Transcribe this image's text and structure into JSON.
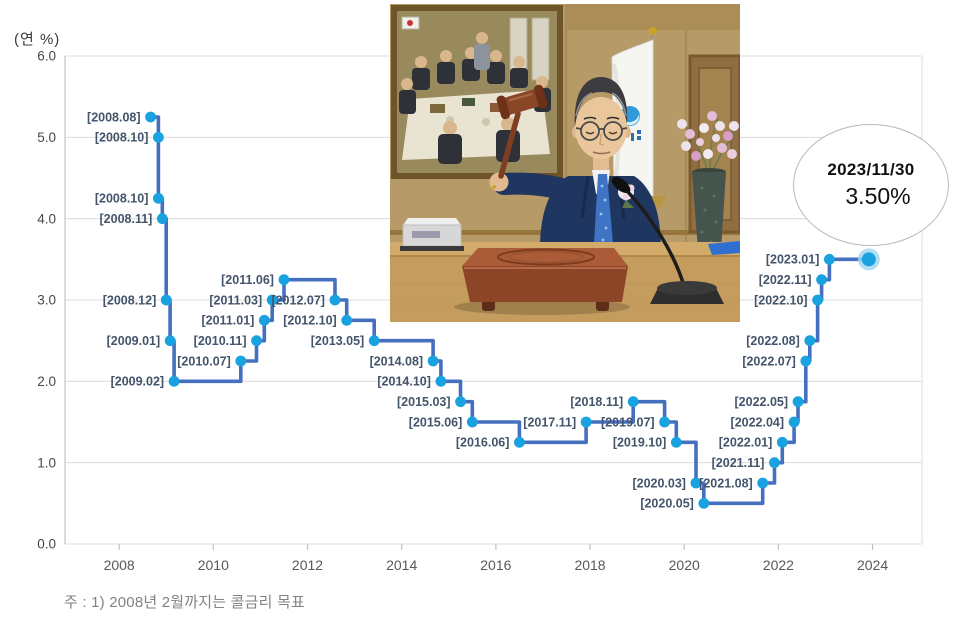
{
  "axis_unit_label": "(연 %)",
  "footnote": "주 : 1) 2008년 2월까지는 콜금리 목표",
  "callout": {
    "date": "2023/11/30",
    "rate": "3.50%"
  },
  "chart_data": {
    "type": "line",
    "step": true,
    "title": "",
    "xlabel": "",
    "ylabel": "(연 %)",
    "ylim": [
      0.0,
      6.0
    ],
    "ytick_step": 1.0,
    "xlim": [
      2006.85,
      2025.05
    ],
    "xticks": [
      2008,
      2010,
      2012,
      2014,
      2016,
      2018,
      2020,
      2022,
      2024
    ],
    "grid": true,
    "legend_position": "none",
    "points": [
      {
        "label": "[2008.08]",
        "x": 2008.667,
        "value": 5.25
      },
      {
        "label": "[2008.10]",
        "x": 2008.833,
        "value": 5.0
      },
      {
        "label": "[2008.10]",
        "x": 2008.833,
        "value": 4.25
      },
      {
        "label": "[2008.11]",
        "x": 2008.917,
        "value": 4.0
      },
      {
        "label": "[2008.12]",
        "x": 2009.0,
        "value": 3.0
      },
      {
        "label": "[2009.01]",
        "x": 2009.083,
        "value": 2.5
      },
      {
        "label": "[2009.02]",
        "x": 2009.167,
        "value": 2.0
      },
      {
        "label": "[2010.07]",
        "x": 2010.583,
        "value": 2.25
      },
      {
        "label": "[2010.11]",
        "x": 2010.917,
        "value": 2.5
      },
      {
        "label": "[2011.01]",
        "x": 2011.083,
        "value": 2.75
      },
      {
        "label": "[2011.03]",
        "x": 2011.25,
        "value": 3.0
      },
      {
        "label": "[2011.06]",
        "x": 2011.5,
        "value": 3.25
      },
      {
        "label": "[2012.07]",
        "x": 2012.583,
        "value": 3.0
      },
      {
        "label": "[2012.10]",
        "x": 2012.833,
        "value": 2.75
      },
      {
        "label": "[2013.05]",
        "x": 2013.417,
        "value": 2.5
      },
      {
        "label": "[2014.08]",
        "x": 2014.667,
        "value": 2.25
      },
      {
        "label": "[2014.10]",
        "x": 2014.833,
        "value": 2.0
      },
      {
        "label": "[2015.03]",
        "x": 2015.25,
        "value": 1.75
      },
      {
        "label": "[2015.06]",
        "x": 2015.5,
        "value": 1.5
      },
      {
        "label": "[2016.06]",
        "x": 2016.5,
        "value": 1.25
      },
      {
        "label": "[2017.11]",
        "x": 2017.917,
        "value": 1.5
      },
      {
        "label": "[2018.11]",
        "x": 2018.917,
        "value": 1.75
      },
      {
        "label": "[2019.07]",
        "x": 2019.583,
        "value": 1.5
      },
      {
        "label": "[2019.10]",
        "x": 2019.833,
        "value": 1.25
      },
      {
        "label": "[2020.03]",
        "x": 2020.25,
        "value": 0.75
      },
      {
        "label": "[2020.05]",
        "x": 2020.417,
        "value": 0.5
      },
      {
        "label": "[2021.08]",
        "x": 2021.667,
        "value": 0.75
      },
      {
        "label": "[2021.11]",
        "x": 2021.917,
        "value": 1.0
      },
      {
        "label": "[2022.01]",
        "x": 2022.083,
        "value": 1.25
      },
      {
        "label": "[2022.04]",
        "x": 2022.333,
        "value": 1.5
      },
      {
        "label": "[2022.05]",
        "x": 2022.417,
        "value": 1.75
      },
      {
        "label": "[2022.07]",
        "x": 2022.583,
        "value": 2.25
      },
      {
        "label": "[2022.08]",
        "x": 2022.667,
        "value": 2.5
      },
      {
        "label": "[2022.10]",
        "x": 2022.833,
        "value": 3.0
      },
      {
        "label": "[2022.11]",
        "x": 2022.917,
        "value": 3.25
      },
      {
        "label": "[2023.01]",
        "x": 2023.083,
        "value": 3.5
      }
    ],
    "current_point": {
      "x": 2023.92,
      "value": 3.5,
      "date": "2023/11/30",
      "rate_text": "3.50%"
    },
    "colors": {
      "line": "#4470bf",
      "marker": "#18a3e0",
      "marker_halo": "#9fd4ef",
      "point_label": "#44546a",
      "grid": "#dcdcdc",
      "axis": "#c4c4c4",
      "tick_text": "#595959",
      "ytick_text": "#474747"
    }
  }
}
